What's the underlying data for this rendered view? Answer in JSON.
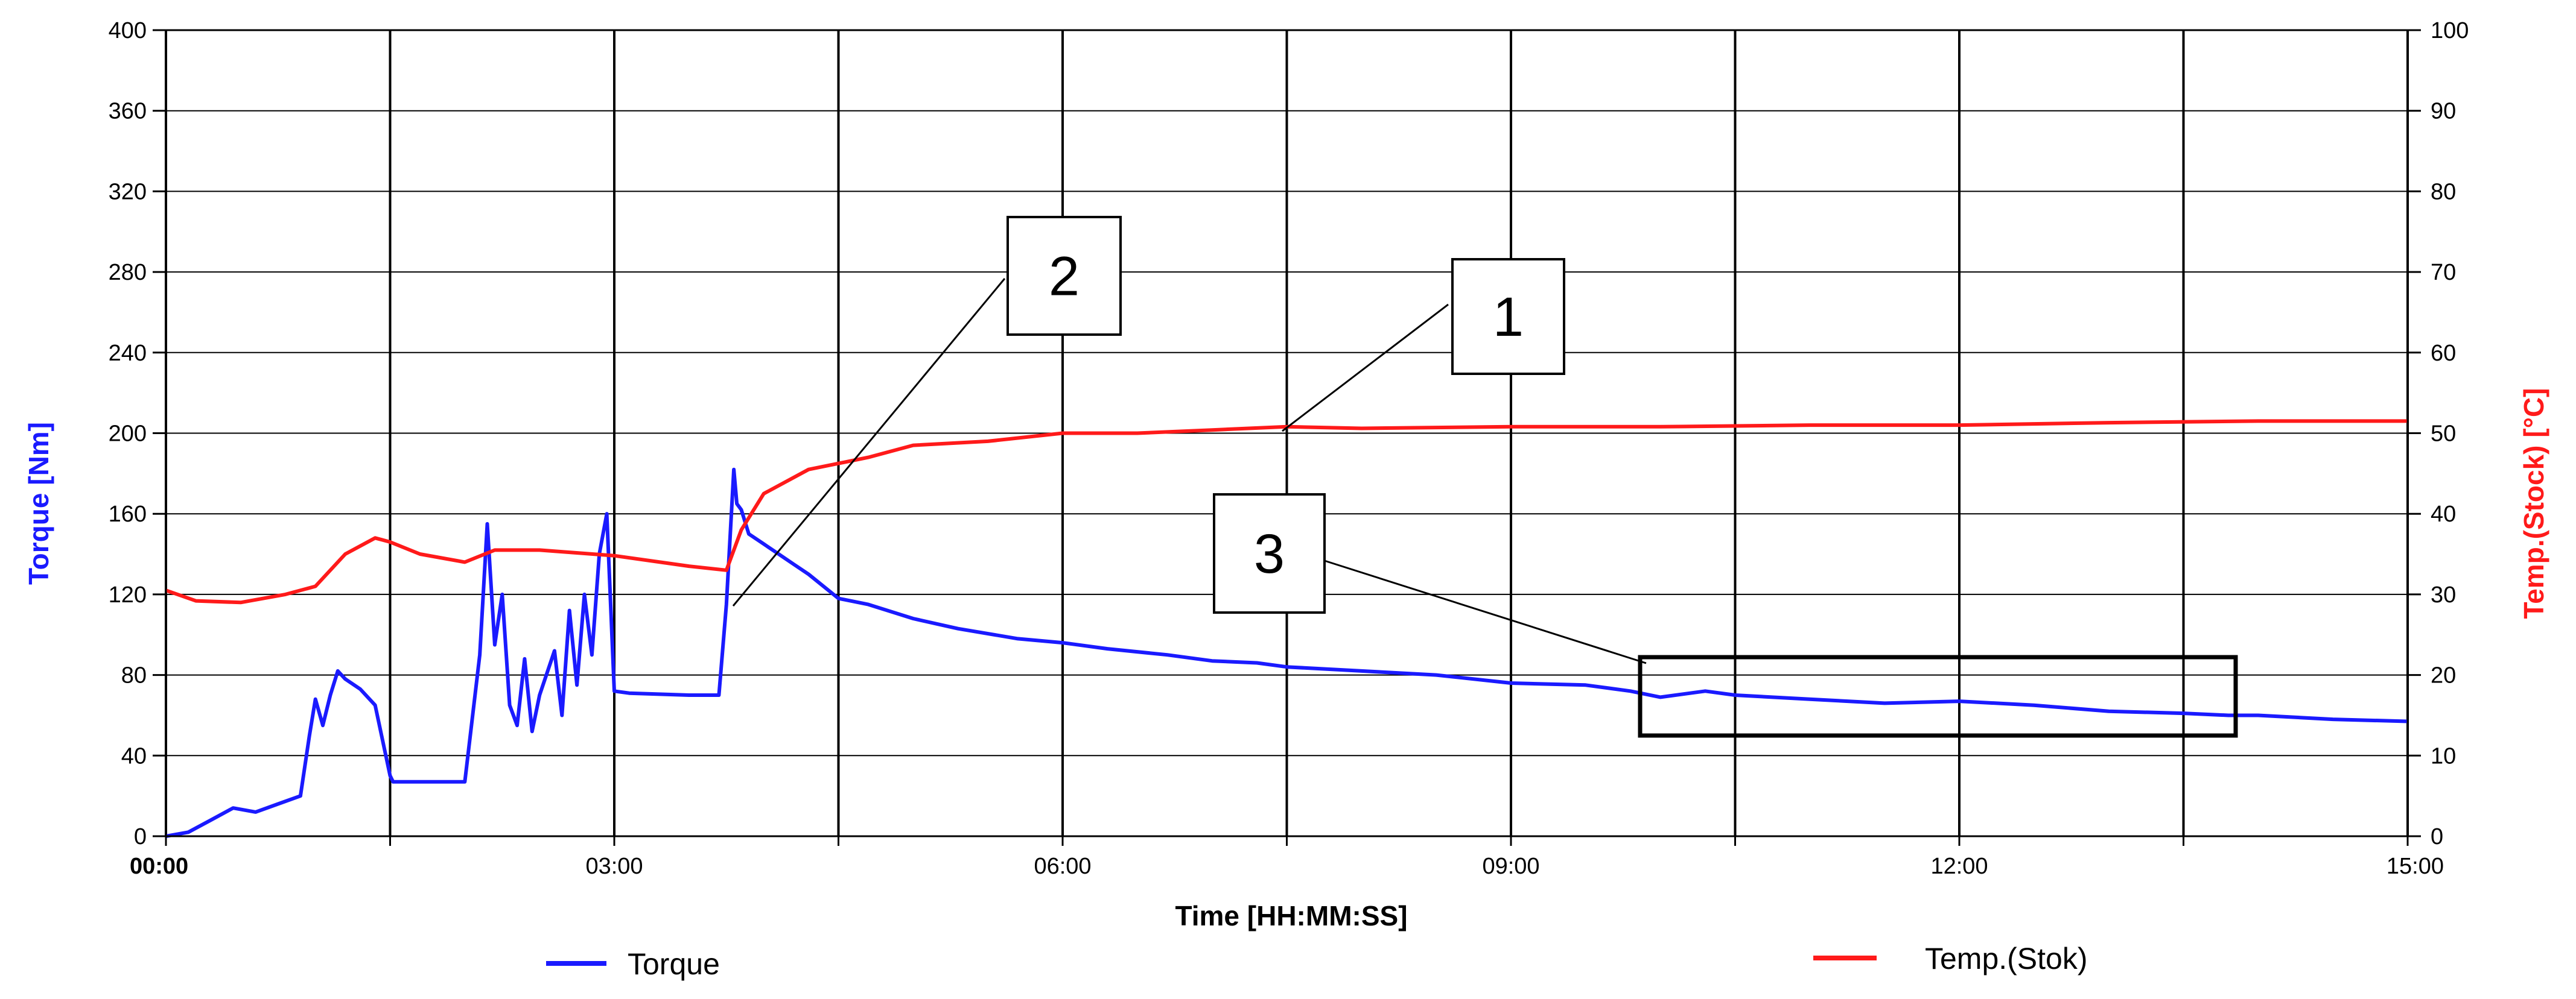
{
  "chart_data": {
    "type": "line",
    "x_axis": {
      "label": "Time [HH:MM:SS]",
      "range_minutes": [
        0,
        15
      ],
      "ticks": [
        "00:00",
        "03:00",
        "06:00",
        "09:00",
        "12:00",
        "15:00"
      ],
      "tick_minutes": [
        0,
        3,
        6,
        9,
        12,
        15
      ],
      "grid_minutes": [
        0,
        1.5,
        3,
        4.5,
        6,
        7.5,
        9,
        10.5,
        12,
        13.5,
        15
      ]
    },
    "y_left": {
      "label": "Torque [Nm]",
      "range": [
        0,
        400
      ],
      "ticks": [
        0,
        40,
        80,
        120,
        160,
        200,
        240,
        280,
        320,
        360,
        400
      ],
      "color": "#1a1aff"
    },
    "y_right": {
      "label": "Temp.(Stock) [°C]",
      "range": [
        0,
        100
      ],
      "ticks": [
        0,
        10,
        20,
        30,
        40,
        50,
        60,
        70,
        80,
        90,
        100
      ],
      "color": "#ff1a1a"
    },
    "grid": true,
    "legend_position": "bottom",
    "series": [
      {
        "name": "Torque",
        "axis": "left",
        "color": "#1a1aff",
        "x_minutes": [
          0,
          0.15,
          0.3,
          0.45,
          0.6,
          0.75,
          0.9,
          0.96,
          1.0,
          1.05,
          1.1,
          1.15,
          1.2,
          1.3,
          1.4,
          1.5,
          1.52,
          1.7,
          2.0,
          2.1,
          2.15,
          2.2,
          2.25,
          2.3,
          2.35,
          2.4,
          2.45,
          2.5,
          2.6,
          2.65,
          2.7,
          2.75,
          2.8,
          2.85,
          2.9,
          2.95,
          3.0,
          3.1,
          3.5,
          3.7,
          3.75,
          3.8,
          3.82,
          3.85,
          3.9,
          4.0,
          4.1,
          4.2,
          4.3,
          4.5,
          4.7,
          5.0,
          5.3,
          5.7,
          6.0,
          6.3,
          6.7,
          7.0,
          7.3,
          7.5,
          8.0,
          8.5,
          9.0,
          9.5,
          9.8,
          10.0,
          10.3,
          10.5,
          11.0,
          11.5,
          12.0,
          12.5,
          13.0,
          13.5,
          13.8,
          14.0,
          14.5,
          15.0
        ],
        "values": [
          0,
          2,
          8,
          14,
          12,
          16,
          20,
          50,
          68,
          55,
          70,
          82,
          78,
          73,
          65,
          30,
          27,
          27,
          27,
          90,
          155,
          95,
          120,
          65,
          55,
          88,
          52,
          70,
          92,
          60,
          112,
          75,
          120,
          90,
          140,
          160,
          72,
          71,
          70,
          70,
          115,
          182,
          165,
          162,
          150,
          145,
          140,
          135,
          130,
          118,
          115,
          108,
          103,
          98,
          96,
          93,
          90,
          87,
          86,
          84,
          82,
          80,
          76,
          75,
          72,
          69,
          72,
          70,
          68,
          66,
          67,
          65,
          62,
          61,
          60,
          60,
          58,
          57
        ]
      },
      {
        "name": "Temp.(Stok)",
        "axis": "right",
        "color": "#ff1a1a",
        "x_minutes": [
          0,
          0.2,
          0.5,
          0.8,
          1.0,
          1.2,
          1.4,
          1.5,
          1.7,
          2.0,
          2.2,
          2.5,
          3.0,
          3.5,
          3.75,
          3.85,
          4.0,
          4.3,
          4.7,
          5.0,
          5.5,
          6.0,
          6.5,
          7.0,
          7.5,
          8.0,
          9.0,
          10.0,
          11.0,
          12.0,
          13.0,
          14.0,
          15.0
        ],
        "values": [
          30.5,
          29.2,
          29.0,
          30.0,
          31.0,
          35.0,
          37.0,
          36.5,
          35.0,
          34.0,
          35.5,
          35.5,
          34.8,
          33.5,
          33.0,
          38.0,
          42.5,
          45.5,
          47.0,
          48.5,
          49.0,
          50.0,
          50.0,
          50.4,
          50.8,
          50.6,
          50.8,
          50.8,
          51.0,
          51.0,
          51.3,
          51.5,
          51.5
        ]
      }
    ],
    "annotations": [
      {
        "label": "1"
      },
      {
        "label": "2"
      },
      {
        "label": "3"
      }
    ]
  }
}
